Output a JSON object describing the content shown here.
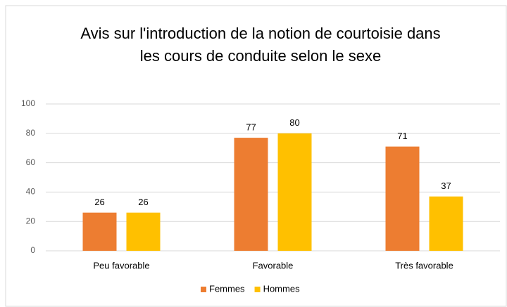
{
  "chart_data": {
    "type": "bar",
    "title": "Avis sur l'introduction de la notion de courtoisie dans les cours de conduite selon le sexe",
    "categories": [
      "Peu favorable",
      "Favorable",
      "Très favorable"
    ],
    "series": [
      {
        "name": "Femmes",
        "color": "#ED7D31",
        "values": [
          26,
          77,
          71
        ]
      },
      {
        "name": "Hommes",
        "color": "#FFC000",
        "values": [
          26,
          80,
          37
        ]
      }
    ],
    "ylim": [
      0,
      100
    ],
    "yticks": [
      0,
      20,
      40,
      60,
      80,
      100
    ],
    "grid": true,
    "legend": "bottom"
  }
}
